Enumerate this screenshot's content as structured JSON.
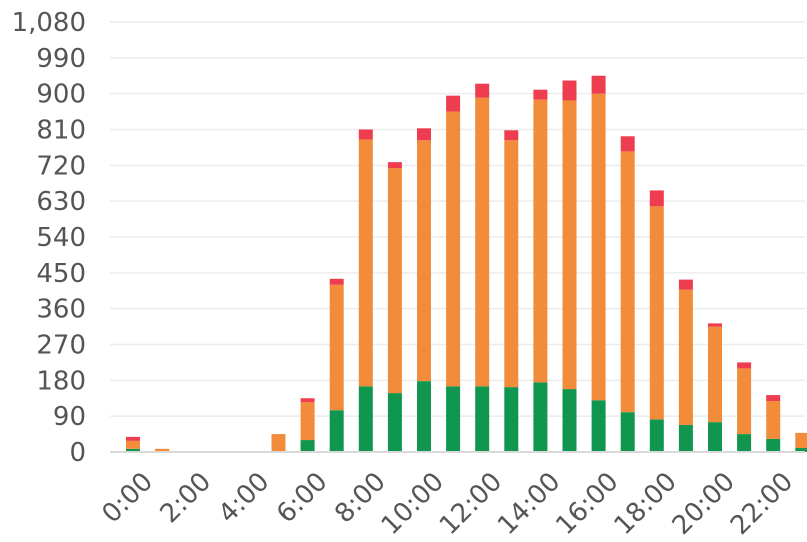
{
  "chart_data": {
    "type": "bar",
    "stacked": true,
    "categories": [
      "0:00",
      "1:00",
      "2:00",
      "3:00",
      "4:00",
      "5:00",
      "6:00",
      "7:00",
      "8:00",
      "9:00",
      "10:00",
      "11:00",
      "12:00",
      "13:00",
      "14:00",
      "15:00",
      "16:00",
      "17:00",
      "18:00",
      "19:00",
      "20:00",
      "21:00",
      "22:00",
      "23:00"
    ],
    "x_tick_labels": [
      "0:00",
      "2:00",
      "4:00",
      "6:00",
      "8:00",
      "10:00",
      "12:00",
      "14:00",
      "16:00",
      "18:00",
      "20:00",
      "22:00"
    ],
    "y_ticks": [
      "0",
      "90",
      "180",
      "270",
      "360",
      "450",
      "540",
      "630",
      "720",
      "810",
      "900",
      "990",
      "1,080"
    ],
    "ylim": [
      0,
      1080
    ],
    "grid": true,
    "legend": "none",
    "series": [
      {
        "color": "#11964f",
        "values": [
          8,
          0,
          0,
          0,
          0,
          0,
          30,
          105,
          165,
          148,
          178,
          165,
          165,
          163,
          175,
          158,
          130,
          100,
          82,
          68,
          75,
          45,
          33,
          10
        ]
      },
      {
        "color": "#f28c3a",
        "values": [
          20,
          8,
          0,
          0,
          0,
          45,
          95,
          315,
          620,
          565,
          605,
          690,
          725,
          620,
          710,
          725,
          770,
          655,
          535,
          340,
          240,
          165,
          95,
          38
        ]
      },
      {
        "color": "#ee3d4f",
        "values": [
          10,
          0,
          0,
          0,
          0,
          0,
          10,
          15,
          25,
          15,
          30,
          40,
          35,
          25,
          25,
          50,
          45,
          38,
          40,
          25,
          8,
          15,
          15,
          0
        ]
      }
    ]
  }
}
